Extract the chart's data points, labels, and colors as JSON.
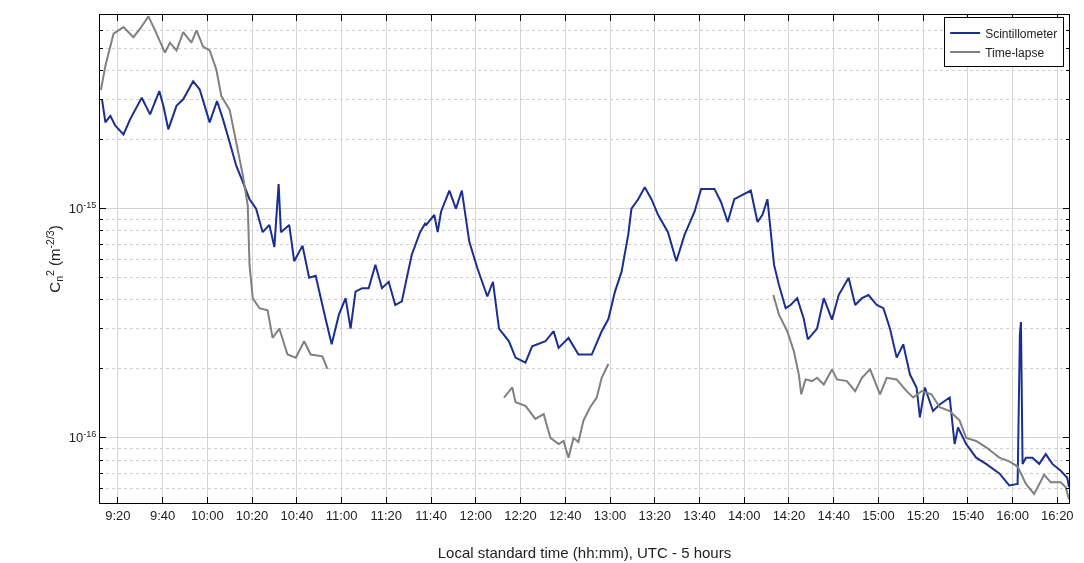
{
  "chart_data": {
    "type": "line",
    "xlabel": "Local standard time (hh:mm), UTC - 5 hours",
    "ylabel": "C$_{n}$$^{2}$ (m$^{-2/3}$)",
    "log": "y",
    "grid": true,
    "legend": "top right",
    "line_style": "solid",
    "marker": "none",
    "xlim": [
      9.2,
      16.42
    ],
    "xticks": [
      {
        "value": 9.333,
        "label": "9:20"
      },
      {
        "value": 9.667,
        "label": "9:40"
      },
      {
        "value": 10,
        "label": "10:00"
      },
      {
        "value": 10.333,
        "label": "10:20"
      },
      {
        "value": 10.667,
        "label": "10:40"
      },
      {
        "value": 11,
        "label": "11:00"
      },
      {
        "value": 11.333,
        "label": "11:20"
      },
      {
        "value": 11.667,
        "label": "11:40"
      },
      {
        "value": 12,
        "label": "12:00"
      },
      {
        "value": 12.333,
        "label": "12:20"
      },
      {
        "value": 12.667,
        "label": "12:40"
      },
      {
        "value": 13,
        "label": "13:00"
      },
      {
        "value": 13.333,
        "label": "13:20"
      },
      {
        "value": 13.667,
        "label": "13:40"
      },
      {
        "value": 14,
        "label": "14:00"
      },
      {
        "value": 14.333,
        "label": "14:20"
      },
      {
        "value": 14.667,
        "label": "14:40"
      },
      {
        "value": 15,
        "label": "15:00"
      },
      {
        "value": 15.333,
        "label": "15:20"
      },
      {
        "value": 15.667,
        "label": "15:40"
      },
      {
        "value": 16,
        "label": "16:00"
      },
      {
        "value": 16.333,
        "label": "16:20"
      }
    ],
    "ylim": [
      5.2e-17,
      7e-15
    ],
    "yticks": [
      {
        "value": 6e-17,
        "label": null
      },
      {
        "value": 7e-17,
        "label": null
      },
      {
        "value": 8e-17,
        "label": null
      },
      {
        "value": 9e-17,
        "label": null
      },
      {
        "value": 1e-16,
        "label": "10$^{-16}$"
      },
      {
        "value": 2e-16,
        "label": null
      },
      {
        "value": 3e-16,
        "label": null
      },
      {
        "value": 4e-16,
        "label": null
      },
      {
        "value": 5e-16,
        "label": null
      },
      {
        "value": 6e-16,
        "label": null
      },
      {
        "value": 7e-16,
        "label": null
      },
      {
        "value": 8e-16,
        "label": null
      },
      {
        "value": 9e-16,
        "label": null
      },
      {
        "value": 1e-15,
        "label": "10$^{-15}$"
      },
      {
        "value": 2e-15,
        "label": null
      },
      {
        "value": 3e-15,
        "label": null
      },
      {
        "value": 4e-15,
        "label": null
      },
      {
        "value": 5e-15,
        "label": null
      },
      {
        "value": 6e-15,
        "label": null
      }
    ],
    "series": [
      {
        "name": "Scintillometer",
        "color": "#1a2f8f",
        "x": [
          9.215,
          9.24,
          9.277,
          9.314,
          9.375,
          9.425,
          9.511,
          9.573,
          9.642,
          9.672,
          9.709,
          9.77,
          9.82,
          9.894,
          9.943,
          10.017,
          10.072,
          10.116,
          10.166,
          10.215,
          10.264,
          10.314,
          10.363,
          10.412,
          10.462,
          10.499,
          10.531,
          10.548,
          10.61,
          10.647,
          10.709,
          10.758,
          10.807,
          10.857,
          10.881,
          10.926,
          10.98,
          11.03,
          11.067,
          11.104,
          11.153,
          11.202,
          11.252,
          11.301,
          11.351,
          11.4,
          11.449,
          11.486,
          11.523,
          11.585,
          11.622,
          11.63,
          11.691,
          11.716,
          11.741,
          11.803,
          11.852,
          11.896,
          11.951,
          12.012,
          12.086,
          12.128,
          12.173,
          12.247,
          12.296,
          12.37,
          12.42,
          12.519,
          12.58,
          12.617,
          12.691,
          12.765,
          12.864,
          12.938,
          12.988,
          13.037,
          13.086,
          13.136,
          13.16,
          13.21,
          13.259,
          13.309,
          13.358,
          13.432,
          13.494,
          13.556,
          13.63,
          13.679,
          13.778,
          13.827,
          13.877,
          13.926,
          14.049,
          14.099,
          14.136,
          14.173,
          14.198,
          14.222,
          14.259,
          14.309,
          14.346,
          14.395,
          14.444,
          14.474,
          14.543,
          14.593,
          14.654,
          14.704,
          14.778,
          14.827,
          14.877,
          14.926,
          14.988,
          15.037,
          15.086,
          15.136,
          15.185,
          15.235,
          15.284,
          15.309,
          15.346,
          15.407,
          15.457,
          15.531,
          15.568,
          15.593,
          15.654,
          15.728,
          15.802,
          15.901,
          15.975,
          16.037,
          16.054,
          16.062,
          16.074,
          16.099,
          16.148,
          16.198,
          16.247,
          16.296,
          16.358,
          16.407,
          16.42
        ],
        "values": [
          3e-15,
          2.38e-15,
          2.54e-15,
          2.3e-15,
          2.11e-15,
          2.46e-15,
          3.05e-15,
          2.58e-15,
          3.26e-15,
          2.81e-15,
          2.22e-15,
          2.81e-15,
          3e-15,
          3.6e-15,
          3.31e-15,
          2.38e-15,
          2.95e-15,
          2.46e-15,
          1.95e-15,
          1.54e-15,
          1.31e-15,
          1.1e-15,
          1e-15,
          7.9e-16,
          8.5e-16,
          6.8e-16,
          1.28e-15,
          7.9e-16,
          8.5e-16,
          5.9e-16,
          6.9e-16,
          5e-16,
          5.1e-16,
          3.8e-16,
          3.3e-16,
          2.56e-16,
          3.45e-16,
          4.07e-16,
          3e-16,
          4.35e-16,
          4.5e-16,
          4.5e-16,
          5.7e-16,
          4.5e-16,
          4.8e-16,
          3.8e-16,
          3.94e-16,
          5e-16,
          6.3e-16,
          7.9e-16,
          8.6e-16,
          8.5e-16,
          9.4e-16,
          7.9e-16,
          9.7e-16,
          1.2e-15,
          1e-15,
          1.2e-15,
          7.2e-16,
          5.5e-16,
          4.14e-16,
          4.8e-16,
          3e-16,
          2.64e-16,
          2.24e-16,
          2.13e-16,
          2.51e-16,
          2.64e-16,
          2.92e-16,
          2.47e-16,
          2.73e-16,
          2.31e-16,
          2.31e-16,
          2.92e-16,
          3.3e-16,
          4.35e-16,
          5.3e-16,
          7.7e-16,
          1e-15,
          1.1e-15,
          1.24e-15,
          1.1e-15,
          9.4e-16,
          7.9e-16,
          5.9e-16,
          7.7e-16,
          9.7e-16,
          1.22e-15,
          1.22e-15,
          1.07e-15,
          8.75e-16,
          1.1e-15,
          1.2e-15,
          8.75e-16,
          9.4e-16,
          1.1e-15,
          7.9e-16,
          5.7e-16,
          4.65e-16,
          3.68e-16,
          3.8e-16,
          4.07e-16,
          3.3e-16,
          2.69e-16,
          3e-16,
          4.07e-16,
          3.28e-16,
          4.2e-16,
          5e-16,
          3.8e-16,
          4.07e-16,
          4.2e-16,
          3.8e-16,
          3.68e-16,
          3e-16,
          2.24e-16,
          2.56e-16,
          1.89e-16,
          1.66e-16,
          1.23e-16,
          1.66e-16,
          1.31e-16,
          1.4e-16,
          1.5e-16,
          9.4e-17,
          1.11e-16,
          9.4e-17,
          8.2e-17,
          7.7e-17,
          7e-17,
          6.2e-17,
          6.3e-17,
          2.82e-16,
          3.2e-16,
          7.7e-17,
          8.2e-17,
          8.2e-17,
          7.7e-17,
          8.5e-17,
          7.7e-17,
          7.2e-17,
          6.7e-17,
          6.1e-17
        ]
      },
      {
        "name": "Time-lapse",
        "color": "#808080",
        "x": [
          9.207,
          9.24,
          9.301,
          9.375,
          9.449,
          9.499,
          9.561,
          9.61,
          9.684,
          9.721,
          9.77,
          9.82,
          9.881,
          9.919,
          9.968,
          10.017,
          10.067,
          10.104,
          10.166,
          10.215,
          10.264,
          10.301,
          10.314,
          10.338,
          10.388,
          10.449,
          10.486,
          10.536,
          10.597,
          10.659,
          10.721,
          10.77,
          10.857,
          10.894,
          11.5,
          12.21,
          12.272,
          12.296,
          12.37,
          12.444,
          12.506,
          12.556,
          12.617,
          12.654,
          12.691,
          12.728,
          12.765,
          12.802,
          12.852,
          12.901,
          12.938,
          12.988,
          13.6,
          14.217,
          14.259,
          14.321,
          14.37,
          14.407,
          14.425,
          14.457,
          14.506,
          14.543,
          14.593,
          14.654,
          14.691,
          14.765,
          14.827,
          14.877,
          14.938,
          15.012,
          15.062,
          15.136,
          15.21,
          15.259,
          15.321,
          15.395,
          15.457,
          15.531,
          15.605,
          15.654,
          15.728,
          15.802,
          15.901,
          15.975,
          16.037,
          16.099,
          16.16,
          16.235,
          16.284,
          16.358,
          16.395,
          16.42
        ],
        "values": [
          3.3e-15,
          4.2e-15,
          5.8e-15,
          6.2e-15,
          5.6e-15,
          6.1e-15,
          6.9e-15,
          6e-15,
          4.8e-15,
          5.3e-15,
          4.9e-15,
          5.9e-15,
          5.3e-15,
          6e-15,
          5.1e-15,
          4.9e-15,
          4.05e-15,
          3.1e-15,
          2.7e-15,
          1.95e-15,
          1.4e-15,
          1.03e-15,
          5.7e-16,
          4.07e-16,
          3.68e-16,
          3.6e-16,
          2.73e-16,
          3e-16,
          2.31e-16,
          2.24e-16,
          2.64e-16,
          2.31e-16,
          2.27e-16,
          2e-16,
          null,
          1.5e-16,
          1.66e-16,
          1.43e-16,
          1.38e-16,
          1.21e-16,
          1.27e-16,
          1e-16,
          9.4e-17,
          9.7e-17,
          8.2e-17,
          1e-16,
          9.6e-17,
          1.19e-16,
          1.36e-16,
          1.5e-16,
          1.83e-16,
          2.1e-16,
          null,
          4.2e-16,
          3.45e-16,
          2.92e-16,
          2.39e-16,
          1.89e-16,
          1.55e-16,
          1.8e-16,
          1.77e-16,
          1.83e-16,
          1.71e-16,
          1.99e-16,
          1.8e-16,
          1.77e-16,
          1.6e-16,
          1.83e-16,
          1.99e-16,
          1.55e-16,
          1.83e-16,
          1.8e-16,
          1.6e-16,
          1.5e-16,
          1.6e-16,
          1.55e-16,
          1.36e-16,
          1.31e-16,
          1.19e-16,
          1e-16,
          9.7e-17,
          9.1e-17,
          8.2e-17,
          7.9e-17,
          7.5e-17,
          6.3e-17,
          5.7e-17,
          6.9e-17,
          6.4e-17,
          6.4e-17,
          6.1e-17,
          5.4e-17
        ]
      }
    ]
  }
}
